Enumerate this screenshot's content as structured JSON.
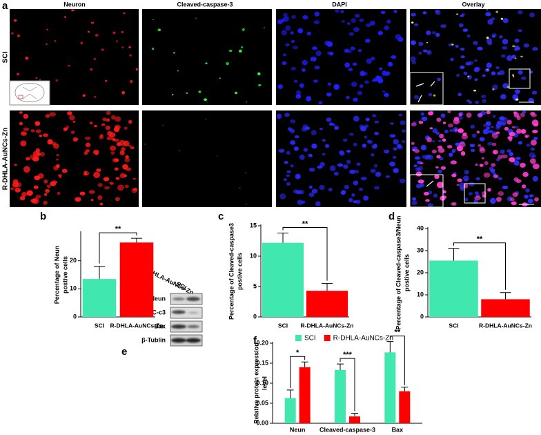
{
  "figure": {
    "panel_labels": [
      "a",
      "b",
      "c",
      "d",
      "e",
      "f"
    ],
    "columns": [
      "Neuron",
      "Cleaved-caspase-3",
      "DAPI",
      "Overlay"
    ],
    "rows": [
      "SCI",
      "R-DHLA-AuNCs-Zn"
    ]
  },
  "blot": {
    "lanes": [
      "SCI",
      "R-DHLA-AuNCs-Zn"
    ],
    "rows": [
      "Neun",
      "C-c3",
      "Bax",
      "β-Tublin"
    ]
  },
  "chart_data": [
    {
      "type": "bar",
      "categories": [
        "SCI",
        "R-DHLA-AuNCs-Zn"
      ],
      "values": [
        13.5,
        26.5
      ],
      "errors": [
        4.5,
        1.5
      ],
      "colors": [
        "#40e8b0",
        "#ff0000"
      ],
      "ylim": [
        0,
        30
      ],
      "yticks": [
        0,
        10,
        20
      ],
      "ylabel": [
        "Percentage of  Neun",
        "postive cells"
      ],
      "significance": "**"
    },
    {
      "type": "bar",
      "categories": [
        "SCI",
        "R-DHLA-AuNCs-Zn"
      ],
      "values": [
        12.2,
        4.3
      ],
      "errors": [
        1.6,
        1.2
      ],
      "colors": [
        "#40e8b0",
        "#ff0000"
      ],
      "ylim": [
        0,
        15
      ],
      "yticks": [
        0,
        5,
        10,
        15
      ],
      "ylabel": [
        "Percentage of  Cleaved-caspase3",
        "postive cells"
      ],
      "significance": "**"
    },
    {
      "type": "bar",
      "categories": [
        "SCI",
        "R-DHLA-AuNCs-Zn"
      ],
      "values": [
        25.5,
        8
      ],
      "errors": [
        5.5,
        3
      ],
      "colors": [
        "#40e8b0",
        "#ff0000"
      ],
      "ylim": [
        0,
        40
      ],
      "yticks": [
        0,
        10,
        20,
        30,
        40
      ],
      "ylabel": [
        "Percentage of  Cleaved-caspase3/Neun",
        "postive cells"
      ],
      "significance": "**"
    },
    {
      "type": "grouped_bar",
      "categories": [
        "Neun",
        "Cleaved-caspase-3",
        "Bax"
      ],
      "series": [
        {
          "name": "SCI",
          "color": "#40e8b0",
          "values": [
            0.063,
            0.133,
            0.177
          ],
          "errors": [
            0.02,
            0.015,
            0.027
          ]
        },
        {
          "name": "R-DHLA-AuNCs-Zn",
          "color": "#ff0000",
          "values": [
            0.14,
            0.017,
            0.08
          ],
          "errors": [
            0.013,
            0.008,
            0.01
          ]
        }
      ],
      "ylim": [
        0,
        0.2
      ],
      "yticks": [
        {
          "value": 0,
          "label": "0.00"
        },
        {
          "value": 0.05,
          "label": "0.05"
        },
        {
          "value": 0.1,
          "label": "0.10"
        },
        {
          "value": 0.15,
          "label": "0.15"
        },
        {
          "value": 0.2,
          "label": "0.20"
        }
      ],
      "ylabel": [
        "Relative protein expression",
        "level"
      ],
      "significance": [
        "*",
        "***",
        "**"
      ],
      "legend": "top"
    }
  ]
}
